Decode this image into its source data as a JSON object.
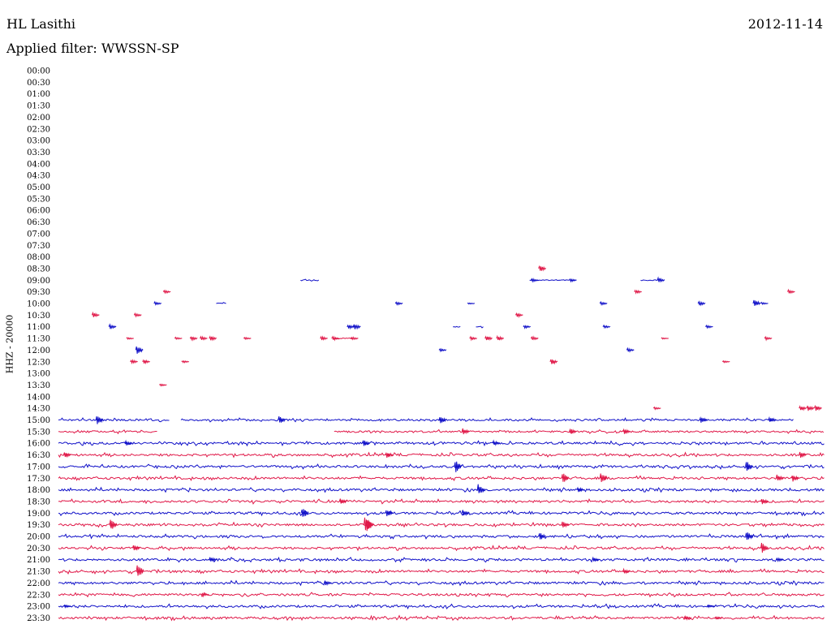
{
  "header": {
    "station": "HL Lasithi",
    "date": "2012-11-14",
    "filter": "Applied filter: WWSSN-SP"
  },
  "axis": {
    "ylabel": "HHZ - 20000"
  },
  "colors": {
    "even_row": "#1010c8",
    "odd_row": "#e01848",
    "background": "#ffffff"
  },
  "chart_data": {
    "type": "helicorder",
    "row_labels": [
      "00:00",
      "00:30",
      "01:00",
      "01:30",
      "02:00",
      "02:30",
      "03:00",
      "03:30",
      "04:00",
      "04:30",
      "05:00",
      "05:30",
      "06:00",
      "06:30",
      "07:00",
      "07:30",
      "08:00",
      "08:30",
      "09:00",
      "09:30",
      "10:00",
      "10:30",
      "11:00",
      "11:30",
      "12:00",
      "12:30",
      "13:00",
      "13:30",
      "14:00",
      "14:30",
      "15:00",
      "15:30",
      "16:00",
      "16:30",
      "17:00",
      "17:30",
      "18:00",
      "18:30",
      "19:00",
      "19:30",
      "20:00",
      "20:30",
      "21:00",
      "21:30",
      "22:00",
      "22:30",
      "23:00",
      "23:30"
    ],
    "row_minutes": 30,
    "rows": [
      {
        "label": "08:30",
        "trace": "none",
        "events": [
          [
            0.63,
            8
          ]
        ]
      },
      {
        "label": "09:00",
        "trace": "none",
        "segments": [
          [
            0.316,
            0.34
          ],
          [
            0.615,
            0.675
          ],
          [
            0.76,
            0.785
          ]
        ],
        "events": [
          [
            0.62,
            4
          ],
          [
            0.67,
            4
          ],
          [
            0.785,
            6
          ]
        ]
      },
      {
        "label": "09:30",
        "trace": "none",
        "events": [
          [
            0.14,
            4
          ],
          [
            0.755,
            5
          ],
          [
            0.955,
            5
          ]
        ]
      },
      {
        "label": "10:00",
        "trace": "none",
        "segments": [
          [
            0.206,
            0.22
          ]
        ],
        "events": [
          [
            0.128,
            4
          ],
          [
            0.443,
            4
          ],
          [
            0.537,
            2
          ],
          [
            0.71,
            4
          ],
          [
            0.838,
            5
          ],
          [
            0.91,
            10
          ],
          [
            0.92,
            3
          ]
        ]
      },
      {
        "label": "10:30",
        "trace": "none",
        "events": [
          [
            0.047,
            6
          ],
          [
            0.102,
            5
          ],
          [
            0.6,
            5
          ]
        ]
      },
      {
        "label": "11:00",
        "trace": "none",
        "segments": [
          [
            0.515,
            0.525
          ],
          [
            0.545,
            0.555
          ]
        ],
        "events": [
          [
            0.069,
            6
          ],
          [
            0.38,
            5
          ],
          [
            0.388,
            7
          ],
          [
            0.61,
            4
          ],
          [
            0.714,
            4
          ],
          [
            0.848,
            4
          ]
        ]
      },
      {
        "label": "11:30",
        "trace": "none",
        "segments": [
          [
            0.36,
            0.385
          ]
        ],
        "events": [
          [
            0.092,
            3
          ],
          [
            0.155,
            3
          ],
          [
            0.175,
            5
          ],
          [
            0.188,
            5
          ],
          [
            0.2,
            6
          ],
          [
            0.245,
            3
          ],
          [
            0.345,
            5
          ],
          [
            0.36,
            5
          ],
          [
            0.385,
            4
          ],
          [
            0.54,
            4
          ],
          [
            0.56,
            7
          ],
          [
            0.575,
            6
          ],
          [
            0.62,
            5
          ],
          [
            0.79,
            2
          ],
          [
            0.925,
            4
          ]
        ]
      },
      {
        "label": "12:00",
        "trace": "none",
        "events": [
          [
            0.104,
            12
          ],
          [
            0.5,
            4
          ],
          [
            0.745,
            5
          ]
        ]
      },
      {
        "label": "12:30",
        "trace": "none",
        "events": [
          [
            0.097,
            5
          ],
          [
            0.113,
            5
          ],
          [
            0.164,
            3
          ],
          [
            0.645,
            8
          ],
          [
            0.87,
            3
          ]
        ]
      },
      {
        "label": "13:30",
        "trace": "none",
        "events": [
          [
            0.135,
            3
          ]
        ]
      },
      {
        "label": "14:30",
        "trace": "none",
        "events": [
          [
            0.78,
            3
          ],
          [
            0.97,
            7
          ],
          [
            0.98,
            8
          ],
          [
            0.99,
            8
          ]
        ]
      },
      {
        "label": "15:00",
        "trace": "partial",
        "segments": [
          [
            0.0,
            0.145
          ],
          [
            0.16,
            0.96
          ]
        ],
        "events": [
          [
            0.052,
            14
          ],
          [
            0.29,
            10
          ],
          [
            0.5,
            10
          ],
          [
            0.84,
            8
          ],
          [
            0.93,
            8
          ]
        ]
      },
      {
        "label": "15:30",
        "trace": "partial",
        "segments": [
          [
            0.0,
            0.13
          ],
          [
            0.36,
            1.0
          ]
        ],
        "events": [
          [
            0.53,
            8
          ],
          [
            0.67,
            8
          ],
          [
            0.74,
            8
          ]
        ]
      },
      {
        "label": "16:00",
        "trace": "full",
        "events": [
          [
            0.09,
            6
          ],
          [
            0.4,
            8
          ],
          [
            0.57,
            6
          ]
        ]
      },
      {
        "label": "16:30",
        "trace": "full",
        "events": [
          [
            0.01,
            8
          ],
          [
            0.43,
            8
          ],
          [
            0.97,
            8
          ]
        ]
      },
      {
        "label": "17:00",
        "trace": "full",
        "events": [
          [
            0.52,
            16
          ],
          [
            0.9,
            14
          ]
        ]
      },
      {
        "label": "17:30",
        "trace": "full",
        "events": [
          [
            0.66,
            14
          ],
          [
            0.71,
            12
          ],
          [
            0.94,
            9
          ],
          [
            0.96,
            10
          ]
        ]
      },
      {
        "label": "18:00",
        "trace": "full",
        "events": [
          [
            0.55,
            14
          ],
          [
            0.68,
            6
          ]
        ]
      },
      {
        "label": "18:30",
        "trace": "full",
        "events": [
          [
            0.37,
            8
          ],
          [
            0.92,
            8
          ]
        ]
      },
      {
        "label": "19:00",
        "trace": "full",
        "events": [
          [
            0.32,
            14
          ],
          [
            0.43,
            10
          ],
          [
            0.53,
            8
          ]
        ]
      },
      {
        "label": "19:30",
        "trace": "full",
        "events": [
          [
            0.07,
            16
          ],
          [
            0.402,
            22
          ],
          [
            0.405,
            16
          ],
          [
            0.66,
            8
          ]
        ]
      },
      {
        "label": "20:00",
        "trace": "full",
        "events": [
          [
            0.63,
            10
          ],
          [
            0.9,
            14
          ]
        ]
      },
      {
        "label": "20:30",
        "trace": "full",
        "events": [
          [
            0.1,
            8
          ],
          [
            0.92,
            14
          ]
        ]
      },
      {
        "label": "21:00",
        "trace": "full",
        "events": [
          [
            0.2,
            6
          ],
          [
            0.7,
            5
          ],
          [
            0.94,
            5
          ]
        ]
      },
      {
        "label": "21:30",
        "trace": "full",
        "events": [
          [
            0.105,
            20
          ],
          [
            0.74,
            6
          ]
        ]
      },
      {
        "label": "22:00",
        "trace": "full",
        "events": [
          [
            0.35,
            6
          ]
        ]
      },
      {
        "label": "22:30",
        "trace": "full",
        "events": [
          [
            0.19,
            4
          ]
        ]
      },
      {
        "label": "23:00",
        "trace": "full",
        "events": [
          [
            0.01,
            4
          ],
          [
            0.85,
            3
          ]
        ]
      },
      {
        "label": "23:30",
        "trace": "full",
        "events": [
          [
            0.82,
            5
          ],
          [
            0.86,
            3
          ]
        ]
      }
    ]
  }
}
